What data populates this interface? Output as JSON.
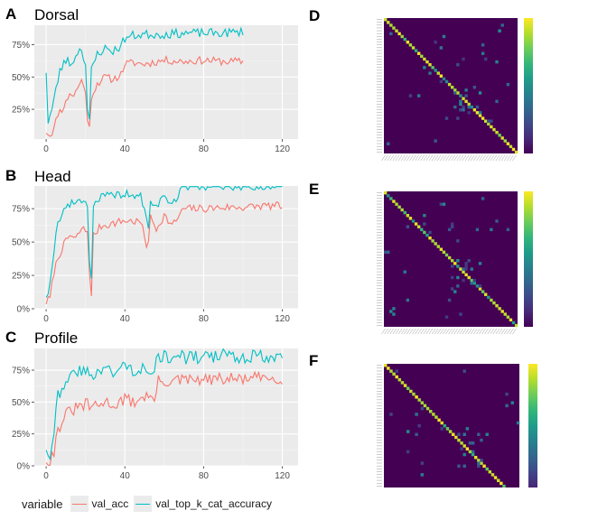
{
  "panels": {
    "A": {
      "letter": "A",
      "title": "Dorsal"
    },
    "B": {
      "letter": "B",
      "title": "Head"
    },
    "C": {
      "letter": "C",
      "title": "Profile"
    },
    "D": {
      "letter": "D"
    },
    "E": {
      "letter": "E"
    },
    "F": {
      "letter": "F"
    }
  },
  "legend": {
    "title": "variable",
    "items": [
      {
        "label": "val_acc",
        "color": "#F8766D"
      },
      {
        "label": "val_top_k_cat_accuracy",
        "color": "#00BFC4"
      }
    ]
  },
  "chart_data": [
    {
      "type": "line",
      "title": "Dorsal",
      "xlabel": "",
      "ylabel": "",
      "xlim": [
        -6,
        128
      ],
      "ylim": [
        2,
        90
      ],
      "x_ticks": [
        0,
        40,
        80,
        120
      ],
      "y_ticks": [
        25,
        50,
        75
      ],
      "y_tick_labels": [
        "25%",
        "50%",
        "75%"
      ],
      "grid": true,
      "series": [
        {
          "name": "val_acc",
          "color": "#F8766D",
          "knots": [
            [
              0,
              8
            ],
            [
              2,
              5
            ],
            [
              4,
              10
            ],
            [
              6,
              22
            ],
            [
              8,
              25
            ],
            [
              10,
              30
            ],
            [
              12,
              38
            ],
            [
              14,
              35
            ],
            [
              16,
              42
            ],
            [
              18,
              47
            ],
            [
              20,
              40
            ],
            [
              21,
              15
            ],
            [
              22,
              10
            ],
            [
              23,
              35
            ],
            [
              26,
              45
            ],
            [
              30,
              50
            ],
            [
              34,
              48
            ],
            [
              38,
              52
            ],
            [
              40,
              60
            ],
            [
              44,
              61
            ],
            [
              50,
              60
            ],
            [
              60,
              63
            ],
            [
              70,
              62
            ],
            [
              80,
              63
            ],
            [
              90,
              62
            ],
            [
              100,
              62
            ]
          ],
          "noise": 3.0,
          "seed": 11
        },
        {
          "name": "val_top_k_cat_accuracy",
          "color": "#00BFC4",
          "knots": [
            [
              0,
              55
            ],
            [
              1,
              15
            ],
            [
              3,
              25
            ],
            [
              5,
              40
            ],
            [
              7,
              55
            ],
            [
              9,
              60
            ],
            [
              11,
              65
            ],
            [
              13,
              58
            ],
            [
              15,
              68
            ],
            [
              18,
              72
            ],
            [
              20,
              60
            ],
            [
              21,
              25
            ],
            [
              22,
              15
            ],
            [
              23,
              55
            ],
            [
              26,
              68
            ],
            [
              30,
              72
            ],
            [
              34,
              70
            ],
            [
              38,
              74
            ],
            [
              40,
              80
            ],
            [
              44,
              82
            ],
            [
              50,
              83
            ],
            [
              60,
              83
            ],
            [
              70,
              84
            ],
            [
              80,
              84
            ],
            [
              90,
              84
            ],
            [
              100,
              85
            ]
          ],
          "noise": 3.5,
          "seed": 23
        }
      ]
    },
    {
      "type": "line",
      "title": "Head",
      "xlabel": "",
      "ylabel": "",
      "xlim": [
        -6,
        128
      ],
      "ylim": [
        0,
        92
      ],
      "x_ticks": [
        0,
        40,
        80,
        120
      ],
      "y_ticks": [
        0,
        25,
        50,
        75
      ],
      "y_tick_labels": [
        "0%",
        "25%",
        "50%",
        "75%"
      ],
      "grid": true,
      "series": [
        {
          "name": "val_acc",
          "color": "#F8766D",
          "knots": [
            [
              0,
              5
            ],
            [
              2,
              8
            ],
            [
              4,
              28
            ],
            [
              6,
              38
            ],
            [
              8,
              45
            ],
            [
              10,
              50
            ],
            [
              12,
              55
            ],
            [
              15,
              52
            ],
            [
              18,
              60
            ],
            [
              21,
              58
            ],
            [
              22,
              30
            ],
            [
              23,
              8
            ],
            [
              24,
              55
            ],
            [
              28,
              62
            ],
            [
              34,
              64
            ],
            [
              40,
              66
            ],
            [
              48,
              65
            ],
            [
              51,
              48
            ],
            [
              52,
              52
            ],
            [
              53,
              68
            ],
            [
              56,
              60
            ],
            [
              60,
              70
            ],
            [
              64,
              62
            ],
            [
              70,
              75
            ],
            [
              80,
              75
            ],
            [
              90,
              76
            ],
            [
              100,
              76
            ],
            [
              110,
              77
            ],
            [
              120,
              77
            ]
          ],
          "noise": 3.0,
          "seed": 7
        },
        {
          "name": "val_top_k_cat_accuracy",
          "color": "#00BFC4",
          "knots": [
            [
              0,
              10
            ],
            [
              2,
              18
            ],
            [
              4,
              45
            ],
            [
              6,
              65
            ],
            [
              8,
              72
            ],
            [
              10,
              76
            ],
            [
              12,
              78
            ],
            [
              15,
              80
            ],
            [
              18,
              82
            ],
            [
              21,
              78
            ],
            [
              22,
              38
            ],
            [
              23,
              22
            ],
            [
              24,
              78
            ],
            [
              28,
              84
            ],
            [
              34,
              85
            ],
            [
              40,
              86
            ],
            [
              48,
              84
            ],
            [
              51,
              68
            ],
            [
              52,
              58
            ],
            [
              53,
              82
            ],
            [
              56,
              76
            ],
            [
              60,
              85
            ],
            [
              64,
              78
            ],
            [
              70,
              92
            ],
            [
              80,
              92
            ],
            [
              90,
              91
            ],
            [
              100,
              92
            ],
            [
              110,
              91
            ],
            [
              120,
              92
            ]
          ],
          "noise": 3.0,
          "seed": 19
        }
      ]
    },
    {
      "type": "line",
      "title": "Profile",
      "xlabel": "",
      "ylabel": "",
      "xlim": [
        -6,
        128
      ],
      "ylim": [
        0,
        92
      ],
      "x_ticks": [
        0,
        40,
        80,
        120
      ],
      "y_ticks": [
        0,
        25,
        50,
        75
      ],
      "y_tick_labels": [
        "0%",
        "25%",
        "50%",
        "75%"
      ],
      "grid": true,
      "series": [
        {
          "name": "val_acc",
          "color": "#F8766D",
          "knots": [
            [
              0,
              5
            ],
            [
              2,
              3
            ],
            [
              4,
              12
            ],
            [
              6,
              28
            ],
            [
              8,
              35
            ],
            [
              10,
              40
            ],
            [
              12,
              42
            ],
            [
              15,
              45
            ],
            [
              20,
              48
            ],
            [
              25,
              46
            ],
            [
              30,
              50
            ],
            [
              35,
              48
            ],
            [
              40,
              52
            ],
            [
              45,
              50
            ],
            [
              50,
              55
            ],
            [
              55,
              52
            ],
            [
              57,
              66
            ],
            [
              60,
              66
            ],
            [
              70,
              67
            ],
            [
              80,
              67
            ],
            [
              90,
              68
            ],
            [
              100,
              68
            ],
            [
              110,
              69
            ],
            [
              120,
              69
            ]
          ],
          "noise": 5.0,
          "seed": 31
        },
        {
          "name": "val_top_k_cat_accuracy",
          "color": "#00BFC4",
          "knots": [
            [
              0,
              15
            ],
            [
              2,
              8
            ],
            [
              4,
              30
            ],
            [
              6,
              55
            ],
            [
              8,
              62
            ],
            [
              10,
              68
            ],
            [
              12,
              70
            ],
            [
              15,
              72
            ],
            [
              20,
              75
            ],
            [
              25,
              72
            ],
            [
              30,
              76
            ],
            [
              35,
              74
            ],
            [
              40,
              78
            ],
            [
              45,
              75
            ],
            [
              50,
              78
            ],
            [
              55,
              76
            ],
            [
              57,
              85
            ],
            [
              60,
              85
            ],
            [
              70,
              85
            ],
            [
              80,
              85
            ],
            [
              90,
              86
            ],
            [
              100,
              86
            ],
            [
              110,
              86
            ],
            [
              120,
              86
            ]
          ],
          "noise": 5.5,
          "seed": 43
        }
      ]
    },
    {
      "type": "heatmap",
      "title": "",
      "colormap": "viridis",
      "n_classes": 48,
      "diagonal": "high",
      "off_diagonal": "low"
    },
    {
      "type": "heatmap",
      "title": "",
      "colormap": "viridis",
      "n_classes": 48,
      "diagonal": "high",
      "off_diagonal": "low"
    },
    {
      "type": "heatmap",
      "title": "",
      "colormap": "viridis",
      "n_classes": 48,
      "diagonal": "high",
      "off_diagonal": "low"
    }
  ]
}
